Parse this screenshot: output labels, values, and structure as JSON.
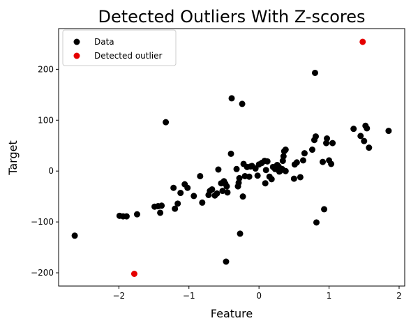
{
  "chart_data": {
    "type": "scatter",
    "title": "Detected Outliers With Z-scores",
    "xlabel": "Feature",
    "ylabel": "Target",
    "xlim": [
      -2.86,
      2.08
    ],
    "ylim": [
      -226,
      280
    ],
    "xticks": [
      {
        "value": -2,
        "label": "−2"
      },
      {
        "value": -1,
        "label": "−1"
      },
      {
        "value": 0,
        "label": "0"
      },
      {
        "value": 1,
        "label": "1"
      },
      {
        "value": 2,
        "label": "2"
      }
    ],
    "yticks": [
      {
        "value": -200,
        "label": "−200"
      },
      {
        "value": -100,
        "label": "−100"
      },
      {
        "value": 0,
        "label": "0"
      },
      {
        "value": 100,
        "label": "100"
      },
      {
        "value": 200,
        "label": "200"
      }
    ],
    "grid": false,
    "legend_position": "top-left",
    "series": [
      {
        "name": "Data",
        "color": "#000000",
        "points": [
          [
            -2.63,
            -127
          ],
          [
            -1.99,
            -88
          ],
          [
            -1.94,
            -89
          ],
          [
            -1.89,
            -89
          ],
          [
            -1.74,
            -85
          ],
          [
            -1.49,
            -70
          ],
          [
            -1.44,
            -69
          ],
          [
            -1.41,
            -82
          ],
          [
            -1.39,
            -68
          ],
          [
            -1.33,
            96
          ],
          [
            -1.22,
            -33
          ],
          [
            -1.2,
            -74
          ],
          [
            -1.16,
            -64
          ],
          [
            -1.12,
            -43
          ],
          [
            -1.06,
            -26
          ],
          [
            -1.02,
            -33
          ],
          [
            -0.93,
            -49
          ],
          [
            -0.84,
            -10
          ],
          [
            -0.81,
            -62
          ],
          [
            -0.72,
            -47
          ],
          [
            -0.7,
            -39
          ],
          [
            -0.67,
            -36
          ],
          [
            -0.63,
            -48
          ],
          [
            -0.6,
            -44
          ],
          [
            -0.58,
            3
          ],
          [
            -0.54,
            -24
          ],
          [
            -0.52,
            -39
          ],
          [
            -0.5,
            -20
          ],
          [
            -0.48,
            -25
          ],
          [
            -0.47,
            -178
          ],
          [
            -0.46,
            -30
          ],
          [
            -0.45,
            -42
          ],
          [
            -0.4,
            34
          ],
          [
            -0.39,
            143
          ],
          [
            -0.32,
            4
          ],
          [
            -0.3,
            -30
          ],
          [
            -0.29,
            -23
          ],
          [
            -0.28,
            -14
          ],
          [
            -0.27,
            -123
          ],
          [
            -0.24,
            132
          ],
          [
            -0.23,
            -50
          ],
          [
            -0.22,
            14
          ],
          [
            -0.2,
            -10
          ],
          [
            -0.17,
            8
          ],
          [
            -0.14,
            -11
          ],
          [
            -0.12,
            9
          ],
          [
            -0.1,
            10
          ],
          [
            -0.05,
            5
          ],
          [
            -0.02,
            -9
          ],
          [
            0.0,
            13
          ],
          [
            0.04,
            16
          ],
          [
            0.08,
            20
          ],
          [
            0.09,
            -24
          ],
          [
            0.1,
            2
          ],
          [
            0.12,
            19
          ],
          [
            0.15,
            -11
          ],
          [
            0.18,
            -16
          ],
          [
            0.2,
            8
          ],
          [
            0.23,
            4
          ],
          [
            0.26,
            12
          ],
          [
            0.28,
            9
          ],
          [
            0.29,
            -1
          ],
          [
            0.3,
            0
          ],
          [
            0.33,
            4
          ],
          [
            0.34,
            20
          ],
          [
            0.35,
            29
          ],
          [
            0.36,
            39
          ],
          [
            0.38,
            0
          ],
          [
            0.38,
            42
          ],
          [
            0.5,
            -15
          ],
          [
            0.51,
            13
          ],
          [
            0.54,
            17
          ],
          [
            0.59,
            -12
          ],
          [
            0.63,
            21
          ],
          [
            0.65,
            35
          ],
          [
            0.76,
            42
          ],
          [
            0.79,
            61
          ],
          [
            0.8,
            193
          ],
          [
            0.81,
            68
          ],
          [
            0.82,
            -101
          ],
          [
            0.91,
            18
          ],
          [
            0.93,
            -75
          ],
          [
            0.96,
            55
          ],
          [
            0.97,
            64
          ],
          [
            1.0,
            21
          ],
          [
            1.03,
            14
          ],
          [
            1.05,
            55
          ],
          [
            1.35,
            83
          ],
          [
            1.45,
            69
          ],
          [
            1.5,
            59
          ],
          [
            1.52,
            89
          ],
          [
            1.54,
            84
          ],
          [
            1.57,
            46
          ],
          [
            1.85,
            79
          ]
        ]
      },
      {
        "name": "Detected outlier",
        "color": "#e50000",
        "points": [
          [
            -1.78,
            -202
          ],
          [
            1.48,
            254
          ]
        ]
      }
    ]
  }
}
